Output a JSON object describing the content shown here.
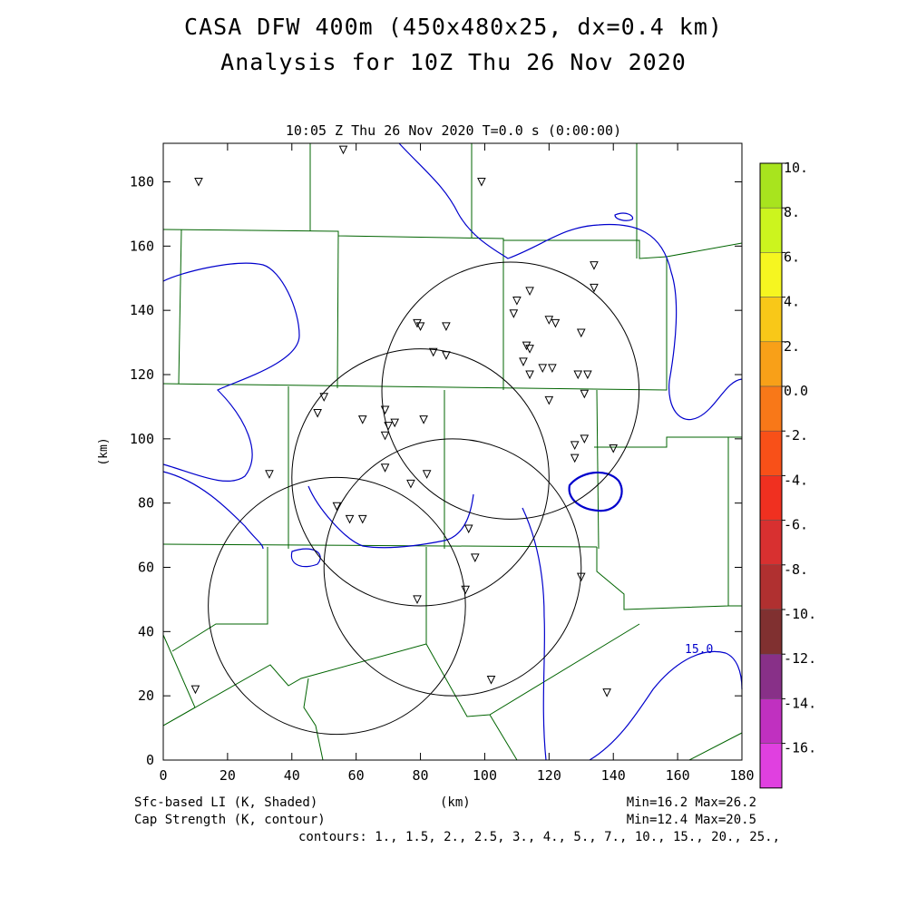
{
  "title_line1": "CASA DFW 400m (450x480x25, dx=0.4 km)",
  "title_line2": "Analysis for 10Z Thu 26 Nov 2020",
  "plot_subtitle": "10:05 Z Thu 26 Nov 2020    T=0.0 s (0:00:00)",
  "x_axis": {
    "label": "(km)",
    "ticks": [
      "0",
      "20",
      "40",
      "60",
      "80",
      "100",
      "120",
      "140",
      "160",
      "180"
    ],
    "range": [
      0,
      180
    ]
  },
  "y_axis": {
    "label": "(km)",
    "ticks": [
      "0",
      "20",
      "40",
      "60",
      "80",
      "100",
      "120",
      "140",
      "160",
      "180"
    ],
    "range": [
      0,
      192
    ]
  },
  "colorbar": {
    "labels": [
      "10.",
      "8.",
      "6.",
      "4.",
      "2.",
      "0.0",
      "-2.",
      "-4.",
      "-6.",
      "-8.",
      "-10.",
      "-12.",
      "-14.",
      "-16."
    ],
    "colors": [
      "#a8e41e",
      "#ccf51e",
      "#f6f620",
      "#f8c818",
      "#f8a018",
      "#f87818",
      "#f85018",
      "#f03020",
      "#d83030",
      "#b03030",
      "#803030",
      "#883088",
      "#c030c0",
      "#e040e0"
    ]
  },
  "footer": {
    "left1": "Sfc-based LI (K, Shaded)",
    "left2": "Cap Strength (K, contour)",
    "center": "(km)",
    "right1": "Min=16.2 Max=26.2",
    "right2": "Min=12.4 Max=20.5",
    "contours": "contours: 1., 1.5, 2., 2.5, 3., 4., 5., 7., 10., 15., 20., 25.,"
  },
  "contour_label": "15.0",
  "radar_rings": [
    {
      "cx": 108,
      "cy": 115,
      "r": 40
    },
    {
      "cx": 80,
      "cy": 88,
      "r": 40
    },
    {
      "cx": 90,
      "cy": 60,
      "r": 40
    },
    {
      "cx": 54,
      "cy": 48,
      "r": 40
    }
  ],
  "stations": [
    [
      11,
      180
    ],
    [
      56,
      190
    ],
    [
      99,
      180
    ],
    [
      134,
      154
    ],
    [
      134,
      147
    ],
    [
      110,
      143
    ],
    [
      114,
      146
    ],
    [
      109,
      139
    ],
    [
      122,
      136
    ],
    [
      120,
      137
    ],
    [
      130,
      133
    ],
    [
      79,
      136
    ],
    [
      80,
      135
    ],
    [
      88,
      135
    ],
    [
      113,
      129
    ],
    [
      114,
      128
    ],
    [
      84,
      127
    ],
    [
      88,
      126
    ],
    [
      112,
      124
    ],
    [
      114,
      120
    ],
    [
      118,
      122
    ],
    [
      121,
      122
    ],
    [
      129,
      120
    ],
    [
      132,
      120
    ],
    [
      131,
      114
    ],
    [
      50,
      113
    ],
    [
      48,
      108
    ],
    [
      120,
      112
    ],
    [
      69,
      109
    ],
    [
      62,
      106
    ],
    [
      70,
      104
    ],
    [
      72,
      105
    ],
    [
      81,
      106
    ],
    [
      69,
      101
    ],
    [
      128,
      98
    ],
    [
      131,
      100
    ],
    [
      140,
      97
    ],
    [
      128,
      94
    ],
    [
      33,
      89
    ],
    [
      69,
      91
    ],
    [
      82,
      89
    ],
    [
      77,
      86
    ],
    [
      54,
      79
    ],
    [
      58,
      75
    ],
    [
      62,
      75
    ],
    [
      95,
      72
    ],
    [
      97,
      63
    ],
    [
      130,
      57
    ],
    [
      94,
      53
    ],
    [
      79,
      50
    ],
    [
      10,
      22
    ],
    [
      102,
      25
    ],
    [
      138,
      21
    ]
  ],
  "colors": {
    "county_lines": "#006400",
    "contour": "#0000cc",
    "rings": "#000000"
  }
}
